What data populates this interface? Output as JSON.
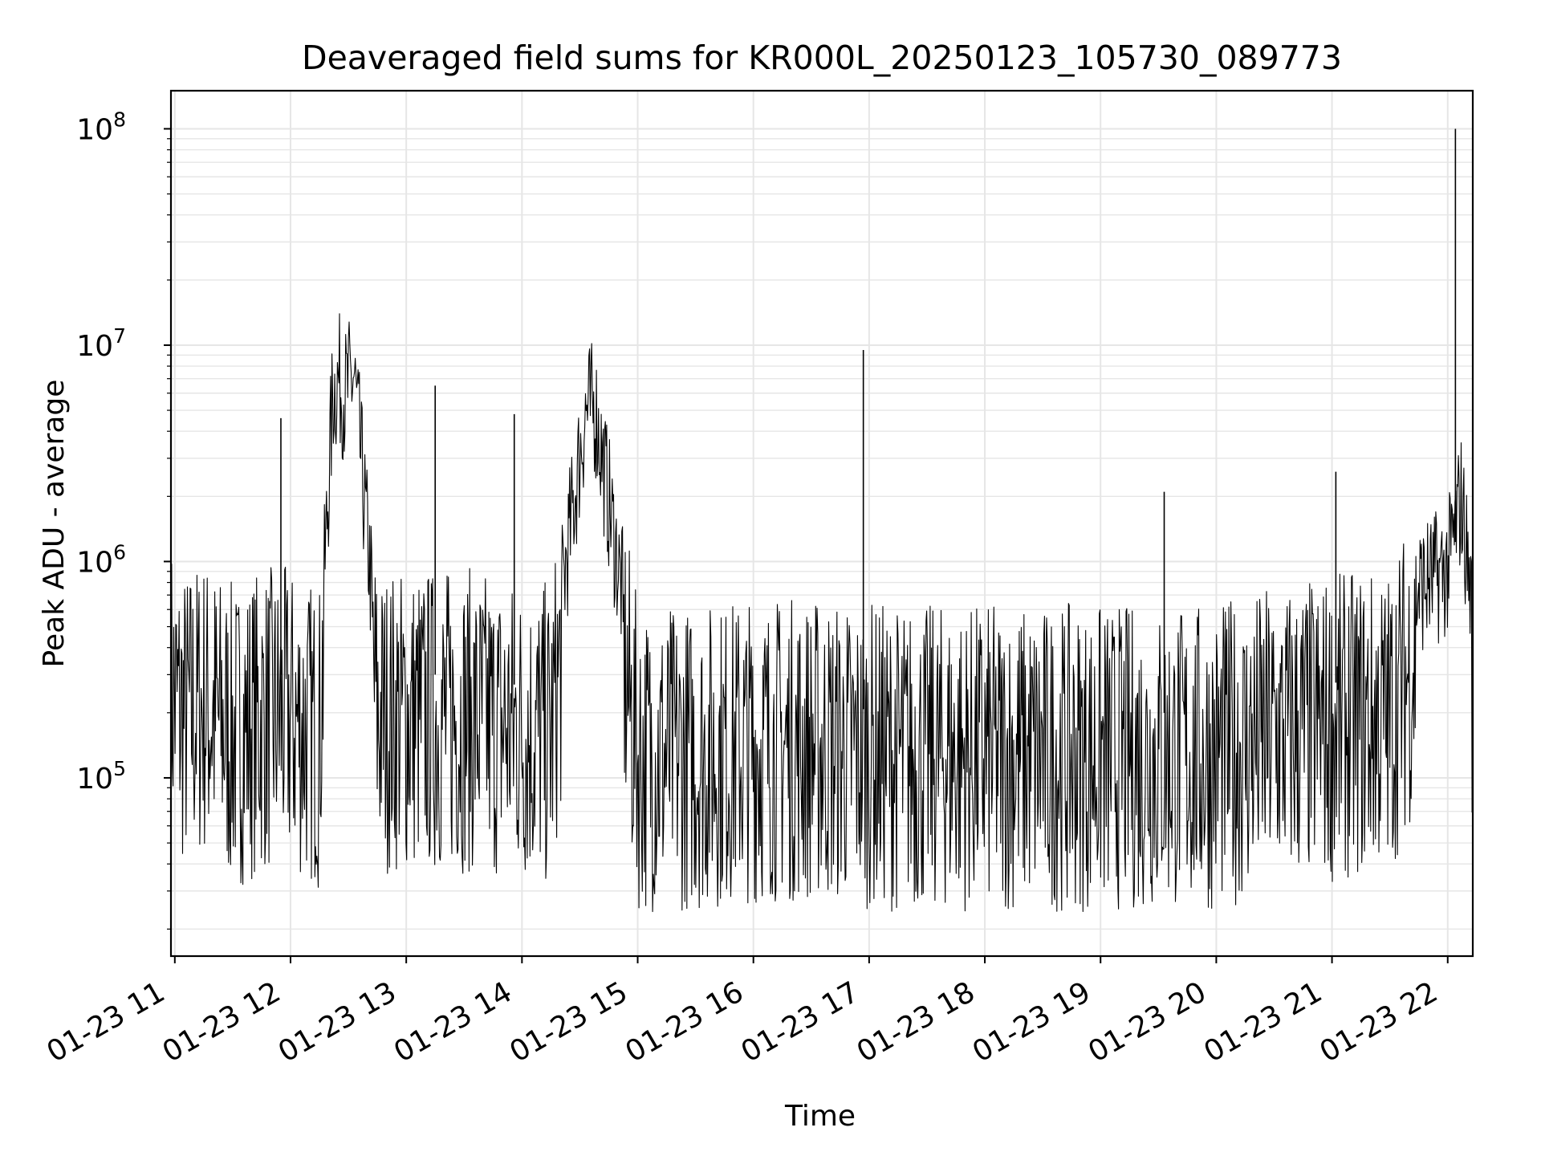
{
  "chart_data": {
    "type": "line",
    "title": "Deaveraged field sums for KR000L_20250123_105730_089773",
    "xlabel": "Time",
    "ylabel": "Peak ADU - average",
    "yscale": "log",
    "ylim": [
      15000,
      150000000
    ],
    "xlim": [
      "2025-01-23 10:58",
      "2025-01-23 22:13"
    ],
    "grid": true,
    "line_color": "#000000",
    "grid_color": "#e6e6e6",
    "x_ticks": [
      {
        "t": "2025-01-23 11:00",
        "label": "01-23 11"
      },
      {
        "t": "2025-01-23 12:00",
        "label": "01-23 12"
      },
      {
        "t": "2025-01-23 13:00",
        "label": "01-23 13"
      },
      {
        "t": "2025-01-23 14:00",
        "label": "01-23 14"
      },
      {
        "t": "2025-01-23 15:00",
        "label": "01-23 15"
      },
      {
        "t": "2025-01-23 16:00",
        "label": "01-23 16"
      },
      {
        "t": "2025-01-23 17:00",
        "label": "01-23 17"
      },
      {
        "t": "2025-01-23 18:00",
        "label": "01-23 18"
      },
      {
        "t": "2025-01-23 19:00",
        "label": "01-23 19"
      },
      {
        "t": "2025-01-23 20:00",
        "label": "01-23 20"
      },
      {
        "t": "2025-01-23 21:00",
        "label": "01-23 21"
      },
      {
        "t": "2025-01-23 22:00",
        "label": "01-23 22"
      }
    ],
    "y_ticks": [
      {
        "value": 100000,
        "base": "10",
        "exp": "5"
      },
      {
        "value": 1000000,
        "base": "10",
        "exp": "6"
      },
      {
        "value": 10000000,
        "base": "10",
        "exp": "7"
      },
      {
        "value": 100000000,
        "base": "10",
        "exp": "8"
      }
    ],
    "series": [
      {
        "values": [
          [
            "2025-01-23 10:58",
            400000
          ],
          [
            "2025-01-23 11:05",
            300000
          ],
          [
            "2025-01-23 11:15",
            350000
          ],
          [
            "2025-01-23 11:30",
            250000
          ],
          [
            "2025-01-23 11:45",
            300000
          ],
          [
            "2025-01-23 11:55",
            4600000
          ],
          [
            "2025-01-23 12:00",
            300000
          ],
          [
            "2025-01-23 12:15",
            250000
          ],
          [
            "2025-01-23 12:22",
            5300000
          ],
          [
            "2025-01-23 12:25",
            6000000
          ],
          [
            "2025-01-23 12:28",
            5100000
          ],
          [
            "2025-01-23 12:33",
            6300000
          ],
          [
            "2025-01-23 12:45",
            300000
          ],
          [
            "2025-01-23 13:15",
            6500000
          ],
          [
            "2025-01-23 13:30",
            300000
          ],
          [
            "2025-01-23 13:56",
            4800000
          ],
          [
            "2025-01-23 14:15",
            250000
          ],
          [
            "2025-01-23 14:33",
            4300000
          ],
          [
            "2025-01-23 14:38",
            4400000
          ],
          [
            "2025-01-23 15:00",
            200000
          ],
          [
            "2025-01-23 15:30",
            200000
          ],
          [
            "2025-01-23 16:00",
            220000
          ],
          [
            "2025-01-23 16:30",
            220000
          ],
          [
            "2025-01-23 16:57",
            9500000
          ],
          [
            "2025-01-23 17:15",
            200000
          ],
          [
            "2025-01-23 17:45",
            200000
          ],
          [
            "2025-01-23 18:15",
            200000
          ],
          [
            "2025-01-23 18:45",
            200000
          ],
          [
            "2025-01-23 19:33",
            2100000
          ],
          [
            "2025-01-23 20:00",
            200000
          ],
          [
            "2025-01-23 20:30",
            250000
          ],
          [
            "2025-01-23 21:02",
            2600000
          ],
          [
            "2025-01-23 21:30",
            300000
          ],
          [
            "2025-01-23 21:45",
            650000
          ],
          [
            "2025-01-23 22:00",
            800000
          ],
          [
            "2025-01-23 22:04",
            100000000
          ],
          [
            "2025-01-23 22:07",
            1700000
          ],
          [
            "2025-01-23 22:13",
            500000
          ]
        ]
      }
    ]
  }
}
